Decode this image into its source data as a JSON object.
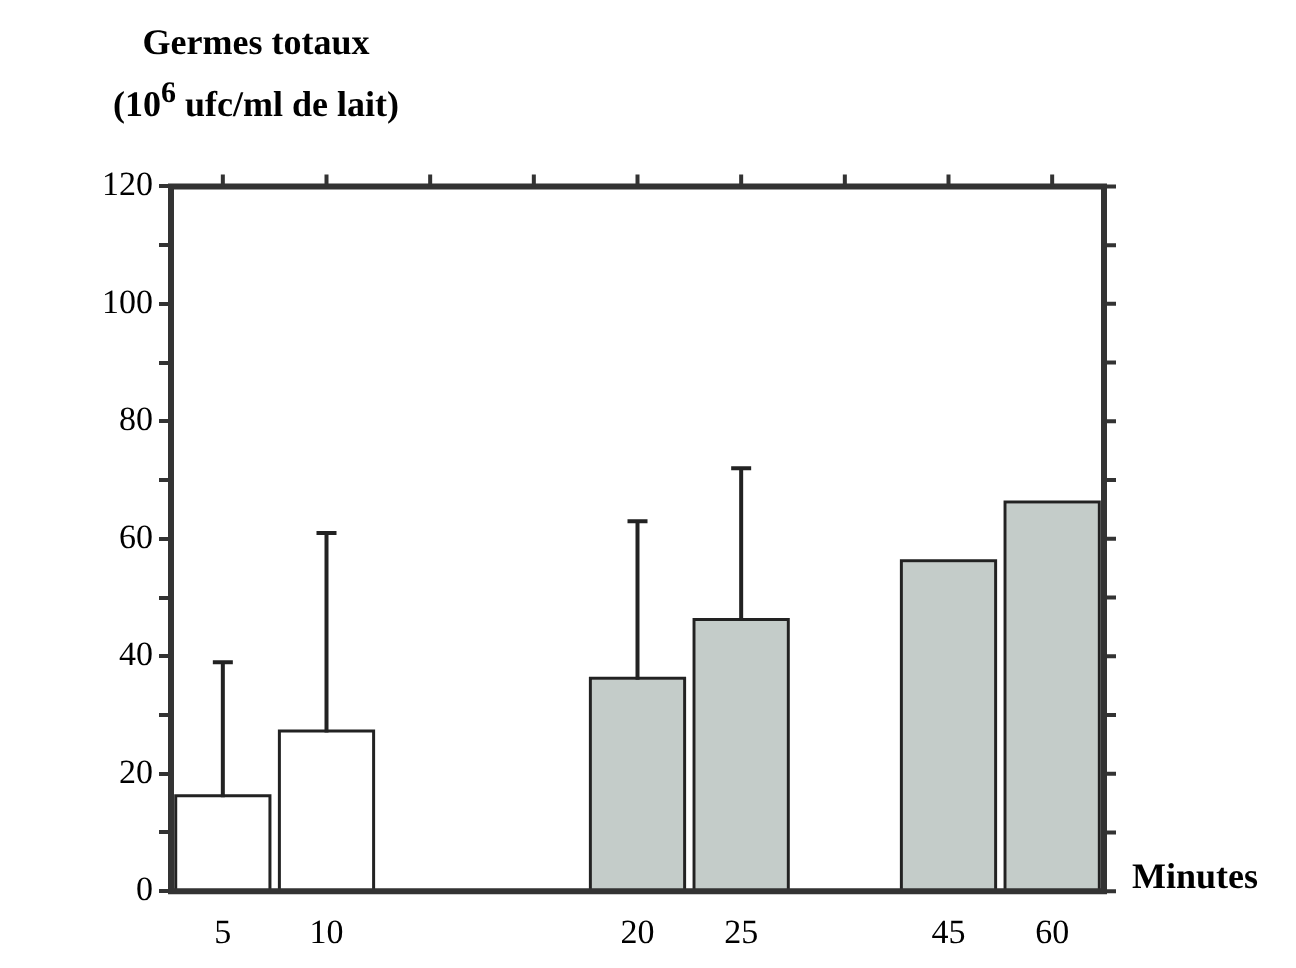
{
  "chart_data": {
    "type": "bar",
    "ylabel": "Germes totaux\n(10$^{6}$ ufc/ml de lait)",
    "xlabel": "Minutes",
    "categories": [
      "5",
      "10",
      null,
      null,
      "20",
      "25",
      null,
      "45",
      "60"
    ],
    "values": [
      16,
      27,
      null,
      null,
      36,
      46,
      null,
      56,
      66
    ],
    "colors": [
      "#ffffff",
      "#ffffff",
      null,
      null,
      "#c4ccc9",
      "#c4ccc9",
      null,
      "#c4ccc9",
      "#c4ccc9"
    ],
    "errors": [
      [
        16,
        39
      ],
      [
        27,
        61
      ],
      null,
      null,
      [
        36,
        63
      ],
      [
        46,
        72
      ],
      null,
      null,
      null
    ],
    "ylim": [
      0,
      120
    ],
    "yticks": [
      0,
      {
        "value": 10,
        "label": null
      },
      20,
      {
        "value": 30,
        "label": null
      },
      40,
      {
        "value": 50,
        "label": null
      },
      60,
      {
        "value": 70,
        "label": null
      },
      80,
      {
        "value": 90,
        "label": null
      },
      100,
      {
        "value": 110,
        "label": null
      },
      120
    ],
    "grid": false,
    "legend": false
  }
}
